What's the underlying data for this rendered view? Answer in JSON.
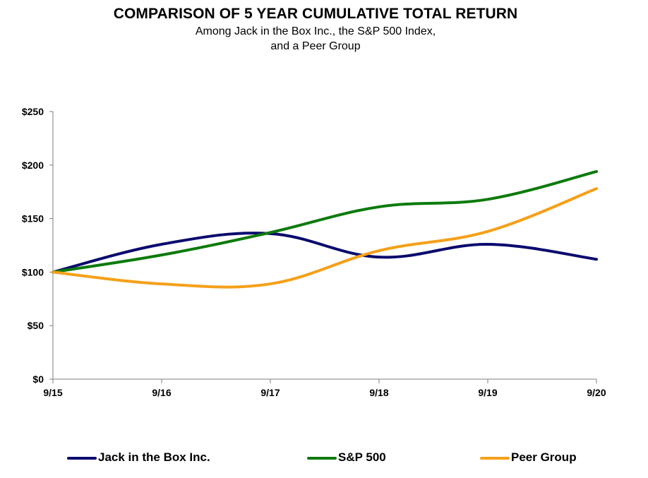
{
  "header": {
    "title": "COMPARISON OF 5 YEAR CUMULATIVE TOTAL RETURN",
    "subtitle_line1": "Among Jack in the Box Inc., the S&P 500 Index,",
    "subtitle_line2": "and a Peer Group"
  },
  "chart_data": {
    "type": "line",
    "title": "COMPARISON OF 5 YEAR CUMULATIVE TOTAL RETURN",
    "subtitle": "Among Jack in the Box Inc., the S&P 500 Index, and a Peer Group",
    "categories": [
      "9/15",
      "9/16",
      "9/17",
      "9/18",
      "9/19",
      "9/20"
    ],
    "y_ticks": [
      "$0",
      "$50",
      "$100",
      "$150",
      "$200",
      "$250"
    ],
    "ylim": [
      0,
      250
    ],
    "grid": false,
    "legend_position": "bottom",
    "series": [
      {
        "name": "Jack in the Box Inc.",
        "color": "#0a0a6e",
        "values": [
          100,
          126,
          136,
          114,
          126,
          112
        ]
      },
      {
        "name": "S&P 500",
        "color": "#0c7a0c",
        "values": [
          100,
          116,
          137,
          161,
          168,
          194
        ]
      },
      {
        "name": "Peer Group",
        "color": "#f5a01a",
        "values": [
          100,
          89,
          89,
          120,
          138,
          178
        ]
      }
    ]
  }
}
